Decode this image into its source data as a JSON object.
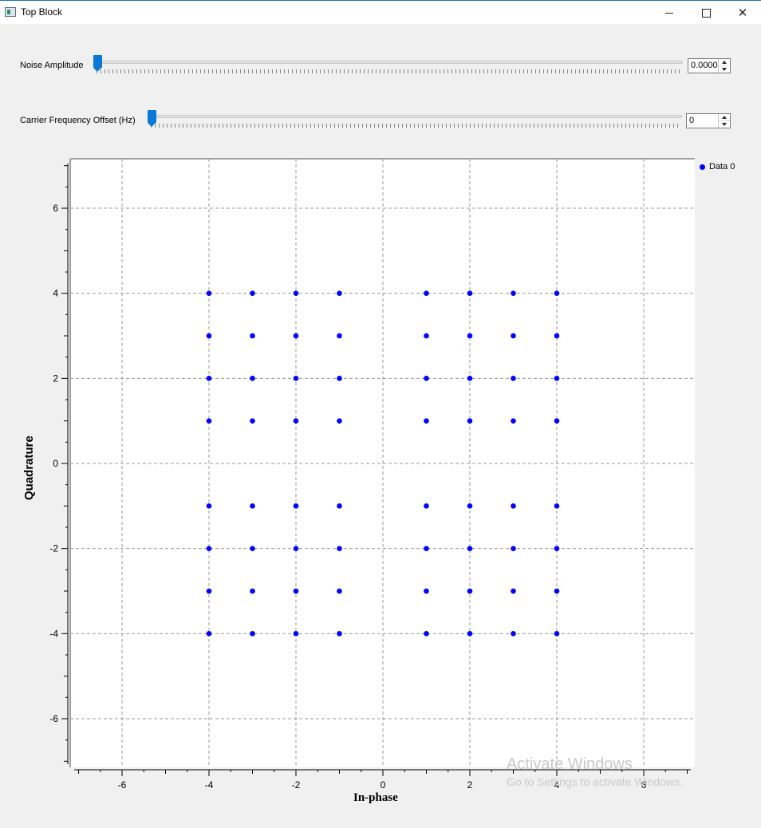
{
  "window": {
    "title": "Top Block",
    "close_glyph": "✕"
  },
  "controls": {
    "noise": {
      "label": "Noise Amplitude",
      "value": "0.0000",
      "position_fraction": 0.0
    },
    "cfo": {
      "label": "Carrier Frequency Offset (Hz)",
      "value": "0",
      "position_fraction": 0.0
    }
  },
  "chart_data": {
    "type": "scatter",
    "title": "",
    "xlabel": "In-phase",
    "ylabel": "Quadrature",
    "xlim": [
      -7.2,
      7.2
    ],
    "ylim": [
      -7.2,
      7.2
    ],
    "major_ticks": [
      -6,
      -4,
      -2,
      0,
      2,
      4,
      6
    ],
    "grid": true,
    "legend_position": "top-right",
    "marker_color": "#0000ff",
    "series": [
      {
        "name": "Data 0",
        "x": [
          -4,
          -3,
          -2,
          -1,
          1,
          2,
          3,
          4,
          -4,
          -3,
          -2,
          -1,
          1,
          2,
          3,
          4,
          -4,
          -3,
          -2,
          -1,
          1,
          2,
          3,
          4,
          -4,
          -3,
          -2,
          -1,
          1,
          2,
          3,
          4,
          -4,
          -3,
          -2,
          -1,
          1,
          2,
          3,
          4,
          -4,
          -3,
          -2,
          -1,
          1,
          2,
          3,
          4,
          -4,
          -3,
          -2,
          -1,
          1,
          2,
          3,
          4,
          -4,
          -3,
          -2,
          -1,
          1,
          2,
          3,
          4
        ],
        "y": [
          4,
          4,
          4,
          4,
          4,
          4,
          4,
          4,
          3,
          3,
          3,
          3,
          3,
          3,
          3,
          3,
          2,
          2,
          2,
          2,
          2,
          2,
          2,
          2,
          1,
          1,
          1,
          1,
          1,
          1,
          1,
          1,
          -1,
          -1,
          -1,
          -1,
          -1,
          -1,
          -1,
          -1,
          -2,
          -2,
          -2,
          -2,
          -2,
          -2,
          -2,
          -2,
          -3,
          -3,
          -3,
          -3,
          -3,
          -3,
          -3,
          -3,
          -4,
          -4,
          -4,
          -4,
          -4,
          -4,
          -4,
          -4
        ]
      }
    ]
  },
  "watermark": {
    "title": "Activate Windows",
    "subtitle": "Go to Settings to activate Windows."
  }
}
